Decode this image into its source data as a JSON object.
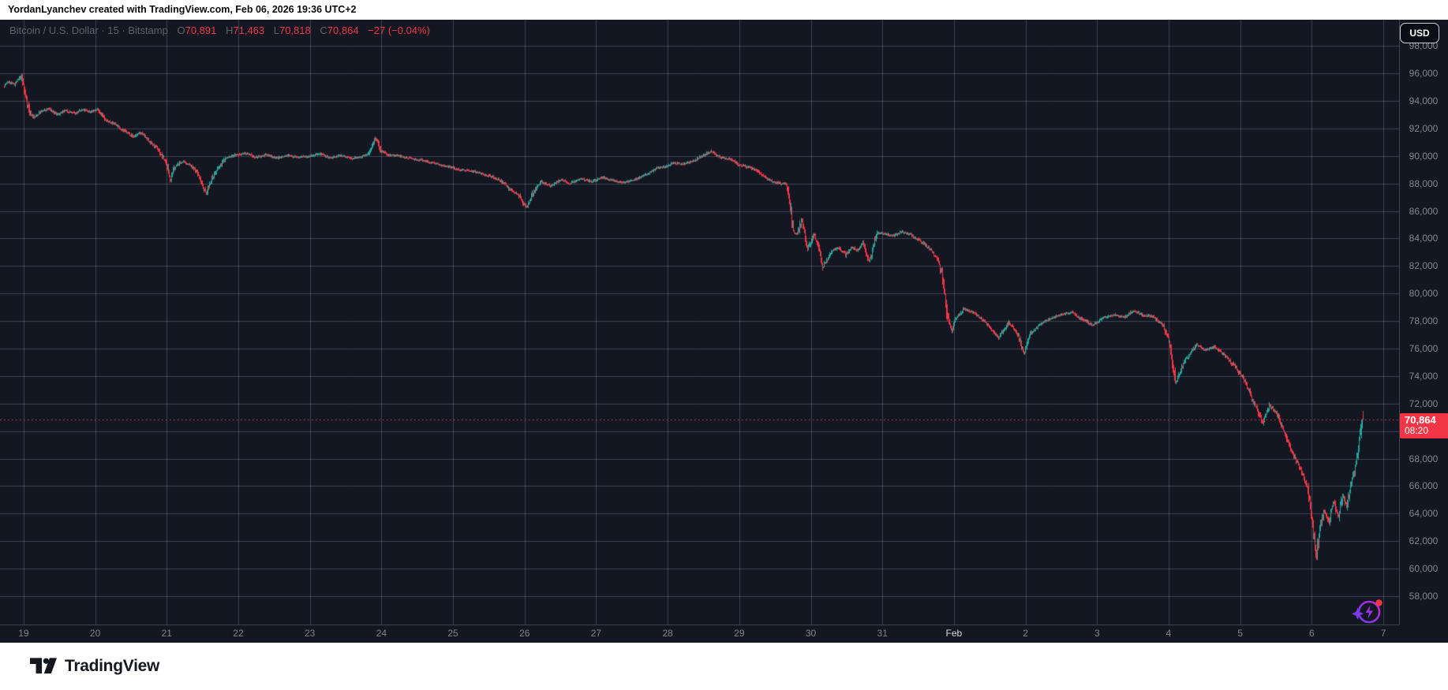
{
  "attribution": "YordanLyanchev created with TradingView.com, Feb 06, 2026 19:36 UTC+2",
  "header": {
    "title": "Bitcoin / U.S. Dollar · 15 · Bitstamp",
    "open_label": "O",
    "open_value": "70,891",
    "high_label": "H",
    "high_value": "71,463",
    "low_label": "L",
    "low_value": "70,818",
    "close_label": "C",
    "close_value": "70,864",
    "change": "−27 (−0.04%)"
  },
  "currency_button": "USD",
  "price_label": {
    "price": "70,864",
    "countdown": "08:20"
  },
  "footer": {
    "brand": "TradingView"
  },
  "colors": {
    "background": "#131722",
    "grid": "rgba(163,170,187,0.30)",
    "up": "#26a69a",
    "down": "#f23645",
    "axis_text": "#81858f",
    "axis_text_bright": "#d6d8de",
    "price_line": "#f23645",
    "label_bg": "#f23645"
  },
  "chart_data": {
    "type": "candlestick",
    "title": "Bitcoin / U.S. Dollar",
    "exchange": "Bitstamp",
    "interval_minutes": 15,
    "currency": "USD",
    "ohlc_display": {
      "open": 70891,
      "high": 71463,
      "low": 70818,
      "close": 70864,
      "change": -27,
      "change_pct": -0.04
    },
    "current_price": 70864,
    "countdown": "08:20",
    "y_axis": {
      "ticks": [
        98000,
        96000,
        94000,
        92000,
        90000,
        88000,
        86000,
        84000,
        82000,
        80000,
        78000,
        76000,
        74000,
        72000,
        70000,
        68000,
        66000,
        64000,
        62000,
        60000,
        58000
      ],
      "visible_price_range": [
        55940,
        99900
      ],
      "grid_step": 2000
    },
    "x_axis": {
      "labels": [
        "19",
        "20",
        "21",
        "22",
        "23",
        "24",
        "25",
        "26",
        "27",
        "28",
        "29",
        "30",
        "31",
        "Feb",
        "2",
        "3",
        "4",
        "5",
        "6",
        "7"
      ],
      "bright_label_index": 13,
      "first_day_index": 19,
      "visible_day_range": [
        18.67,
        38.22
      ],
      "note": "day index 19-31 = Jan 19-31, 32-38 = Feb 1-7"
    },
    "price_path_anchors": [
      [
        18.73,
        95100
      ],
      [
        18.8,
        95400
      ],
      [
        18.88,
        95200
      ],
      [
        18.97,
        95750
      ],
      [
        19.03,
        94600
      ],
      [
        19.1,
        93100
      ],
      [
        19.16,
        92800
      ],
      [
        19.25,
        93200
      ],
      [
        19.36,
        93450
      ],
      [
        19.48,
        93000
      ],
      [
        19.6,
        93300
      ],
      [
        19.72,
        93100
      ],
      [
        19.84,
        93350
      ],
      [
        19.95,
        93200
      ],
      [
        20.05,
        93400
      ],
      [
        20.15,
        92600
      ],
      [
        20.28,
        92350
      ],
      [
        20.42,
        91800
      ],
      [
        20.55,
        91400
      ],
      [
        20.65,
        91700
      ],
      [
        20.78,
        91000
      ],
      [
        20.9,
        90400
      ],
      [
        21.0,
        89500
      ],
      [
        21.06,
        88300
      ],
      [
        21.13,
        89200
      ],
      [
        21.22,
        89600
      ],
      [
        21.32,
        89400
      ],
      [
        21.42,
        88900
      ],
      [
        21.5,
        88100
      ],
      [
        21.56,
        87200
      ],
      [
        21.63,
        88300
      ],
      [
        21.72,
        89000
      ],
      [
        21.82,
        89800
      ],
      [
        21.95,
        90050
      ],
      [
        22.1,
        90200
      ],
      [
        22.25,
        89900
      ],
      [
        22.4,
        90100
      ],
      [
        22.55,
        89850
      ],
      [
        22.7,
        90050
      ],
      [
        22.85,
        89900
      ],
      [
        23.0,
        90000
      ],
      [
        23.15,
        90150
      ],
      [
        23.3,
        89850
      ],
      [
        23.45,
        90050
      ],
      [
        23.6,
        89800
      ],
      [
        23.72,
        89950
      ],
      [
        23.82,
        90100
      ],
      [
        23.9,
        91000
      ],
      [
        23.94,
        91350
      ],
      [
        24.0,
        90400
      ],
      [
        24.08,
        90100
      ],
      [
        24.2,
        90050
      ],
      [
        24.35,
        89900
      ],
      [
        24.5,
        89750
      ],
      [
        24.65,
        89600
      ],
      [
        24.8,
        89400
      ],
      [
        24.95,
        89250
      ],
      [
        25.1,
        89000
      ],
      [
        25.25,
        88950
      ],
      [
        25.4,
        88700
      ],
      [
        25.55,
        88500
      ],
      [
        25.68,
        88200
      ],
      [
        25.8,
        87600
      ],
      [
        25.92,
        87200
      ],
      [
        26.0,
        86500
      ],
      [
        26.05,
        86300
      ],
      [
        26.13,
        87400
      ],
      [
        26.25,
        88100
      ],
      [
        26.38,
        87800
      ],
      [
        26.52,
        88300
      ],
      [
        26.65,
        88000
      ],
      [
        26.8,
        88350
      ],
      [
        26.95,
        88150
      ],
      [
        27.1,
        88450
      ],
      [
        27.25,
        88200
      ],
      [
        27.4,
        88100
      ],
      [
        27.55,
        88300
      ],
      [
        27.7,
        88600
      ],
      [
        27.85,
        89100
      ],
      [
        28.0,
        89250
      ],
      [
        28.1,
        89500
      ],
      [
        28.22,
        89400
      ],
      [
        28.35,
        89600
      ],
      [
        28.5,
        90000
      ],
      [
        28.62,
        90350
      ],
      [
        28.75,
        89900
      ],
      [
        28.88,
        89800
      ],
      [
        29.0,
        89400
      ],
      [
        29.12,
        89200
      ],
      [
        29.25,
        89000
      ],
      [
        29.38,
        88400
      ],
      [
        29.5,
        88100
      ],
      [
        29.67,
        87950
      ],
      [
        29.77,
        84500
      ],
      [
        29.82,
        84300
      ],
      [
        29.88,
        85400
      ],
      [
        29.97,
        83200
      ],
      [
        30.05,
        84300
      ],
      [
        30.12,
        83500
      ],
      [
        30.18,
        81900
      ],
      [
        30.22,
        82300
      ],
      [
        30.3,
        83100
      ],
      [
        30.4,
        83300
      ],
      [
        30.5,
        82800
      ],
      [
        30.58,
        83400
      ],
      [
        30.66,
        83100
      ],
      [
        30.74,
        83700
      ],
      [
        30.82,
        82300
      ],
      [
        30.88,
        83300
      ],
      [
        30.94,
        84400
      ],
      [
        31.05,
        84350
      ],
      [
        31.15,
        84200
      ],
      [
        31.28,
        84500
      ],
      [
        31.4,
        84300
      ],
      [
        31.55,
        83800
      ],
      [
        31.68,
        83200
      ],
      [
        31.78,
        82500
      ],
      [
        31.85,
        81300
      ],
      [
        31.92,
        78300
      ],
      [
        31.98,
        77300
      ],
      [
        32.05,
        78300
      ],
      [
        32.15,
        78900
      ],
      [
        32.28,
        78600
      ],
      [
        32.4,
        78200
      ],
      [
        32.52,
        77500
      ],
      [
        32.64,
        76800
      ],
      [
        32.78,
        77900
      ],
      [
        32.9,
        77000
      ],
      [
        32.99,
        75700
      ],
      [
        33.08,
        77100
      ],
      [
        33.22,
        77800
      ],
      [
        33.38,
        78200
      ],
      [
        33.52,
        78500
      ],
      [
        33.65,
        78650
      ],
      [
        33.8,
        78150
      ],
      [
        33.95,
        77700
      ],
      [
        34.1,
        78250
      ],
      [
        34.25,
        78450
      ],
      [
        34.4,
        78300
      ],
      [
        34.52,
        78750
      ],
      [
        34.65,
        78450
      ],
      [
        34.8,
        78300
      ],
      [
        34.93,
        77700
      ],
      [
        35.03,
        76300
      ],
      [
        35.11,
        73400
      ],
      [
        35.2,
        74800
      ],
      [
        35.3,
        75600
      ],
      [
        35.4,
        76300
      ],
      [
        35.52,
        75900
      ],
      [
        35.65,
        76150
      ],
      [
        35.8,
        75500
      ],
      [
        35.93,
        74700
      ],
      [
        36.05,
        73900
      ],
      [
        36.15,
        72700
      ],
      [
        36.25,
        71500
      ],
      [
        36.32,
        70600
      ],
      [
        36.42,
        71900
      ],
      [
        36.52,
        71300
      ],
      [
        36.62,
        70000
      ],
      [
        36.72,
        68600
      ],
      [
        36.82,
        67600
      ],
      [
        36.88,
        66900
      ],
      [
        36.95,
        65900
      ],
      [
        37.02,
        63400
      ],
      [
        37.07,
        60700
      ],
      [
        37.13,
        62900
      ],
      [
        37.18,
        64200
      ],
      [
        37.25,
        63400
      ],
      [
        37.32,
        64900
      ],
      [
        37.38,
        63700
      ],
      [
        37.44,
        65400
      ],
      [
        37.5,
        64600
      ],
      [
        37.56,
        66200
      ],
      [
        37.62,
        67500
      ],
      [
        37.67,
        68900
      ],
      [
        37.72,
        70900
      ]
    ],
    "final_candle": {
      "open": 70891,
      "high": 71463,
      "low": 70818,
      "close": 70864
    }
  }
}
